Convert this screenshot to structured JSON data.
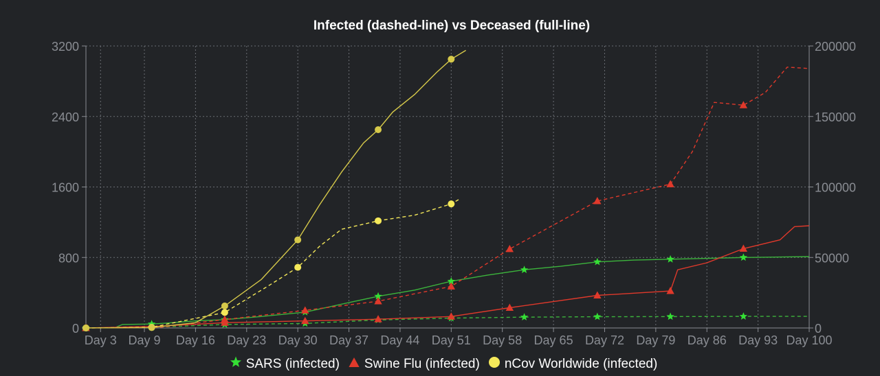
{
  "chart_data": {
    "type": "line",
    "title": "Infected (dashed-line) vs Deceased (full-line)",
    "x_tick_labels": [
      "Day 3",
      "Day 9",
      "Day 16",
      "Day 23",
      "Day 30",
      "Day 37",
      "Day 44",
      "Day 51",
      "Day 58",
      "Day 65",
      "Day 72",
      "Day 79",
      "Day 86",
      "Day 93",
      "Day 100"
    ],
    "y_left_ticks": [
      "0",
      "800",
      "1600",
      "2400",
      "3200"
    ],
    "y_right_ticks": [
      "0",
      "50000",
      "100000",
      "150000",
      "200000"
    ],
    "y_left_range": [
      0,
      3200
    ],
    "y_right_range": [
      0,
      200000
    ],
    "x_range": [
      1,
      100
    ],
    "grid": true,
    "legend_position": "bottom",
    "series": [
      {
        "name": "SARS (infected)",
        "color": "#3cb53c",
        "marker": "star",
        "axis": "right",
        "style": "dashed",
        "points": [
          [
            1,
            0
          ],
          [
            10,
            500
          ],
          [
            20,
            2500
          ],
          [
            31,
            3200
          ],
          [
            41,
            5700
          ],
          [
            51,
            7000
          ],
          [
            61,
            7700
          ],
          [
            71,
            8000
          ],
          [
            81,
            8100
          ],
          [
            91,
            8200
          ],
          [
            100,
            8200
          ]
        ]
      },
      {
        "name": "SARS (deceased)",
        "color": "#3cb53c",
        "marker": "star",
        "axis": "left",
        "style": "solid",
        "points": [
          [
            1,
            0
          ],
          [
            5,
            5
          ],
          [
            6,
            40
          ],
          [
            10,
            45
          ],
          [
            12,
            55
          ],
          [
            16,
            80
          ],
          [
            20,
            95
          ],
          [
            25,
            130
          ],
          [
            31,
            180
          ],
          [
            36,
            270
          ],
          [
            41,
            360
          ],
          [
            46,
            430
          ],
          [
            51,
            530
          ],
          [
            56,
            600
          ],
          [
            61,
            660
          ],
          [
            66,
            700
          ],
          [
            71,
            750
          ],
          [
            76,
            770
          ],
          [
            81,
            780
          ],
          [
            91,
            800
          ],
          [
            100,
            810
          ]
        ]
      },
      {
        "name": "Swine Flu (infected)",
        "color": "#e0392b",
        "marker": "triangle",
        "axis": "right",
        "style": "dashed",
        "points": [
          [
            1,
            0
          ],
          [
            11,
            400
          ],
          [
            20,
            6000
          ],
          [
            31,
            12500
          ],
          [
            41,
            19000
          ],
          [
            51,
            29500
          ],
          [
            59,
            56000
          ],
          [
            71,
            90000
          ],
          [
            81,
            102000
          ],
          [
            84,
            125000
          ],
          [
            87,
            160000
          ],
          [
            91,
            158000
          ],
          [
            94,
            167000
          ],
          [
            97,
            185000
          ],
          [
            100,
            184000
          ]
        ]
      },
      {
        "name": "Swine Flu (deceased)",
        "color": "#e0392b",
        "marker": "triangle",
        "axis": "left",
        "style": "solid",
        "points": [
          [
            1,
            0
          ],
          [
            11,
            20
          ],
          [
            20,
            60
          ],
          [
            31,
            80
          ],
          [
            41,
            100
          ],
          [
            51,
            130
          ],
          [
            59,
            230
          ],
          [
            71,
            370
          ],
          [
            81,
            420
          ],
          [
            82,
            660
          ],
          [
            86,
            740
          ],
          [
            91,
            900
          ],
          [
            96,
            1000
          ],
          [
            98,
            1150
          ],
          [
            100,
            1160
          ]
        ]
      },
      {
        "name": "nCov Worldwide (infected)",
        "color": "#f5e95a",
        "marker": "circle",
        "axis": "right",
        "style": "dashed",
        "points": [
          [
            1,
            0
          ],
          [
            10,
            500
          ],
          [
            20,
            11000
          ],
          [
            26,
            30000
          ],
          [
            30,
            43000
          ],
          [
            33,
            58000
          ],
          [
            36,
            70000
          ],
          [
            41,
            76000
          ],
          [
            46,
            80000
          ],
          [
            51,
            88000
          ],
          [
            52,
            91000
          ]
        ]
      },
      {
        "name": "nCov Worldwide (deceased)",
        "color": "#d6c94a",
        "marker": "circle",
        "axis": "left",
        "style": "solid",
        "points": [
          [
            1,
            0
          ],
          [
            10,
            5
          ],
          [
            16,
            60
          ],
          [
            20,
            250
          ],
          [
            25,
            550
          ],
          [
            30,
            1000
          ],
          [
            33,
            1400
          ],
          [
            36,
            1770
          ],
          [
            39,
            2100
          ],
          [
            41,
            2250
          ],
          [
            43,
            2450
          ],
          [
            46,
            2650
          ],
          [
            49,
            2900
          ],
          [
            51,
            3050
          ],
          [
            53,
            3150
          ]
        ]
      }
    ],
    "legend_entries": [
      {
        "label": "SARS (infected)",
        "color": "#35e035",
        "shape": "star"
      },
      {
        "label": "Swine Flu (infected)",
        "color": "#e0392b",
        "shape": "triangle"
      },
      {
        "label": "nCov Worldwide (infected)",
        "color": "#f5e95a",
        "shape": "circle"
      }
    ]
  }
}
